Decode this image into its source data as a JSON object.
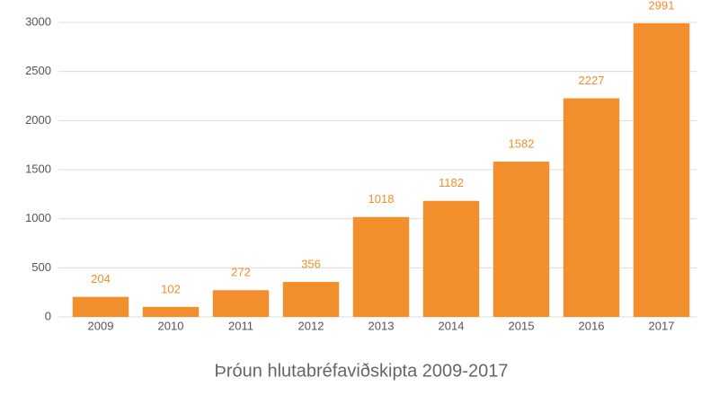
{
  "chart_data": {
    "type": "bar",
    "title": "Þróun hlutabréfaviðskipta 2009-2017",
    "categories": [
      "2009",
      "2010",
      "2011",
      "2012",
      "2013",
      "2014",
      "2015",
      "2016",
      "2017"
    ],
    "values": [
      204,
      102,
      272,
      356,
      1018,
      1182,
      1582,
      2227,
      2991
    ],
    "color": "#f28e2b",
    "ylim": [
      0,
      3000
    ],
    "yticks": [
      0,
      500,
      1000,
      1500,
      2000,
      2500,
      3000
    ],
    "grid": true,
    "data_labels": true
  }
}
